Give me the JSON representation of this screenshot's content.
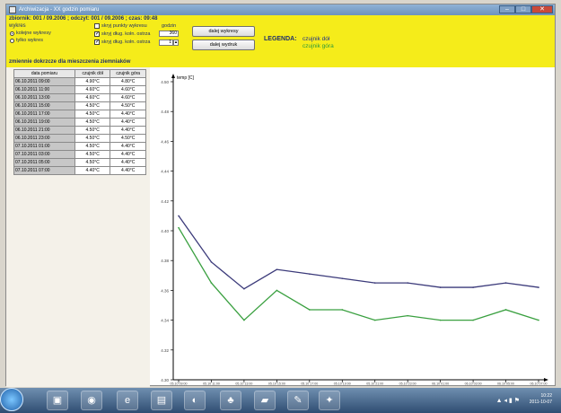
{
  "window": {
    "title": "Archiwizacja - XX godzin pomiaru",
    "min_label": "–",
    "max_label": "□",
    "close_label": "✕"
  },
  "header": {
    "info": "zbiornik: 001 / 09.2006 ; odczyt: 001 / 09.2006 ; czas: 09:48",
    "group_label": "wykres",
    "radio_1": "kolejne wykresy",
    "radio_2": "tylko wykres",
    "check_1": "skryj punkty wykresu",
    "check_2": "skryj dług. kołn. ostrza",
    "check_3": "skryj dług. kołn. ostrza",
    "input_label": "godzin",
    "input_value": "360",
    "spin_value": "1",
    "button_1": "dalej wykresy",
    "button_2": "dalej wydruk",
    "legend_title": "LEGENDA:",
    "legend_1": "czujnik dół",
    "legend_2": "czujnik góra",
    "subhead": "zmiennie dokrzcze dla mieszczenia ziemniaków"
  },
  "table": {
    "headers": [
      "data pomiaru",
      "czujnik dół",
      "czujnik góra"
    ],
    "rows": [
      [
        "06.10.2011 09:00",
        "4.90°C",
        "4.80°C"
      ],
      [
        "06.10.2011 11:00",
        "4.60°C",
        "4.60°C"
      ],
      [
        "06.10.2011 13:00",
        "4.60°C",
        "4.60°C"
      ],
      [
        "06.10.2011 15:00",
        "4.50°C",
        "4.50°C"
      ],
      [
        "06.10.2011 17:00",
        "4.50°C",
        "4.40°C"
      ],
      [
        "06.10.2011 19:00",
        "4.50°C",
        "4.40°C"
      ],
      [
        "06.10.2011 21:00",
        "4.50°C",
        "4.40°C"
      ],
      [
        "06.10.2011 23:00",
        "4.50°C",
        "4.50°C"
      ],
      [
        "07.10.2011 01:00",
        "4.50°C",
        "4.40°C"
      ],
      [
        "07.10.2011 03:00",
        "4.50°C",
        "4.40°C"
      ],
      [
        "07.10.2011 05:00",
        "4.50°C",
        "4.40°C"
      ],
      [
        "07.10.2011 07:00",
        "4.40°C",
        "4.40°C"
      ]
    ]
  },
  "chart_data": {
    "type": "line",
    "title": "",
    "ylabel": "temp [C]",
    "xlabel": "",
    "x": [
      "05.10 09:00",
      "05.10 11:00",
      "05.10 13:00",
      "05.10 15:00",
      "05.10 17:00",
      "05.10 19:00",
      "05.10 21:00",
      "05.10 23:00",
      "06.10 01:00",
      "06.10 03:00",
      "06.10 05:00",
      "06.10 07:00"
    ],
    "ylim": [
      4.3,
      4.5
    ],
    "yticks": [
      "4.50",
      "4.48",
      "4.46",
      "4.44",
      "4.42",
      "4.40",
      "4.38",
      "4.36",
      "4.34",
      "4.32",
      "4.30"
    ],
    "series": [
      {
        "name": "czujnik dół",
        "color": "#3b3a7a",
        "values": [
          4.41,
          4.379,
          4.361,
          4.374,
          4.371,
          4.368,
          4.365,
          4.365,
          4.362,
          4.362,
          4.365,
          4.362
        ]
      },
      {
        "name": "czujnik góra",
        "color": "#3aa040",
        "values": [
          4.402,
          4.365,
          4.34,
          4.36,
          4.347,
          4.347,
          4.34,
          4.343,
          4.34,
          4.34,
          4.347,
          4.34
        ]
      }
    ]
  },
  "taskbar": {
    "clock_time": "10:22",
    "clock_date": "2011-10-07",
    "tray": "▲ ◂ ▮ ⚑"
  }
}
